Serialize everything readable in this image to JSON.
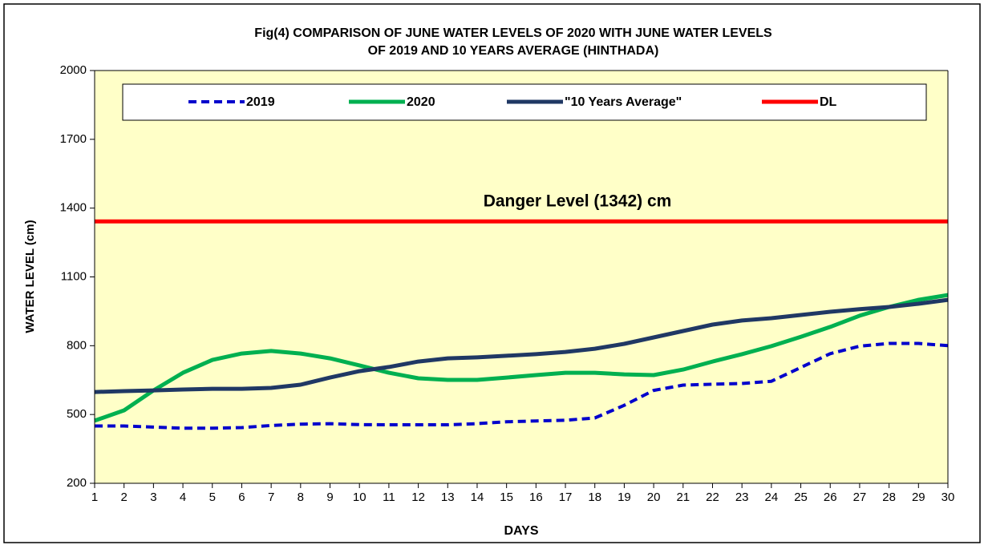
{
  "chart_data": {
    "type": "line",
    "title": [
      "Fig(4)  COMPARISON  OF JUNE  WATER  LEVELS OF 2020 WITH   JUNE   WATER  LEVELS",
      "OF 2019  AND 10 YEARS  AVERAGE  (HINTHADA)"
    ],
    "x_label": "DAYS",
    "y_label": "WATER LEVEL (cm)",
    "annotation": "Danger Level (1342) cm",
    "x": [
      1,
      2,
      3,
      4,
      5,
      6,
      7,
      8,
      9,
      10,
      11,
      12,
      13,
      14,
      15,
      16,
      17,
      18,
      19,
      20,
      21,
      22,
      23,
      24,
      25,
      26,
      27,
      28,
      29,
      30
    ],
    "xlim": [
      1,
      30
    ],
    "xticks": [
      1,
      2,
      3,
      4,
      5,
      6,
      7,
      8,
      9,
      10,
      11,
      12,
      13,
      14,
      15,
      16,
      17,
      18,
      19,
      20,
      21,
      22,
      23,
      24,
      25,
      26,
      27,
      28,
      29,
      30
    ],
    "ylim": [
      200,
      2000
    ],
    "yticks": [
      200,
      500,
      800,
      1100,
      1400,
      1700,
      2000
    ],
    "grid": false,
    "legend": "top",
    "series": [
      {
        "name": "2019",
        "color": "#0000cc",
        "style": "dashed",
        "values": [
          450,
          450,
          445,
          440,
          440,
          443,
          452,
          458,
          460,
          456,
          455,
          455,
          455,
          460,
          468,
          472,
          475,
          485,
          540,
          605,
          628,
          632,
          635,
          645,
          705,
          765,
          798,
          810,
          810,
          800
        ]
      },
      {
        "name": "2020",
        "color": "#00b050",
        "style": "solid",
        "values": [
          473,
          518,
          605,
          682,
          738,
          766,
          777,
          766,
          745,
          714,
          682,
          658,
          651,
          651,
          661,
          672,
          682,
          682,
          675,
          672,
          696,
          731,
          763,
          798,
          839,
          882,
          931,
          969,
          1000,
          1021
        ]
      },
      {
        "name": "\"10 Years Average\"",
        "color": "#203864",
        "style": "solid",
        "values": [
          598,
          602,
          605,
          609,
          612,
          612,
          616,
          630,
          661,
          689,
          707,
          731,
          745,
          749,
          756,
          763,
          773,
          787,
          808,
          836,
          864,
          892,
          910,
          920,
          934,
          948,
          959,
          969,
          983,
          1000
        ]
      },
      {
        "name": "DL",
        "color": "#ff0000",
        "style": "solid",
        "values": [
          1342,
          1342,
          1342,
          1342,
          1342,
          1342,
          1342,
          1342,
          1342,
          1342,
          1342,
          1342,
          1342,
          1342,
          1342,
          1342,
          1342,
          1342,
          1342,
          1342,
          1342,
          1342,
          1342,
          1342,
          1342,
          1342,
          1342,
          1342,
          1342,
          1342
        ]
      }
    ]
  }
}
